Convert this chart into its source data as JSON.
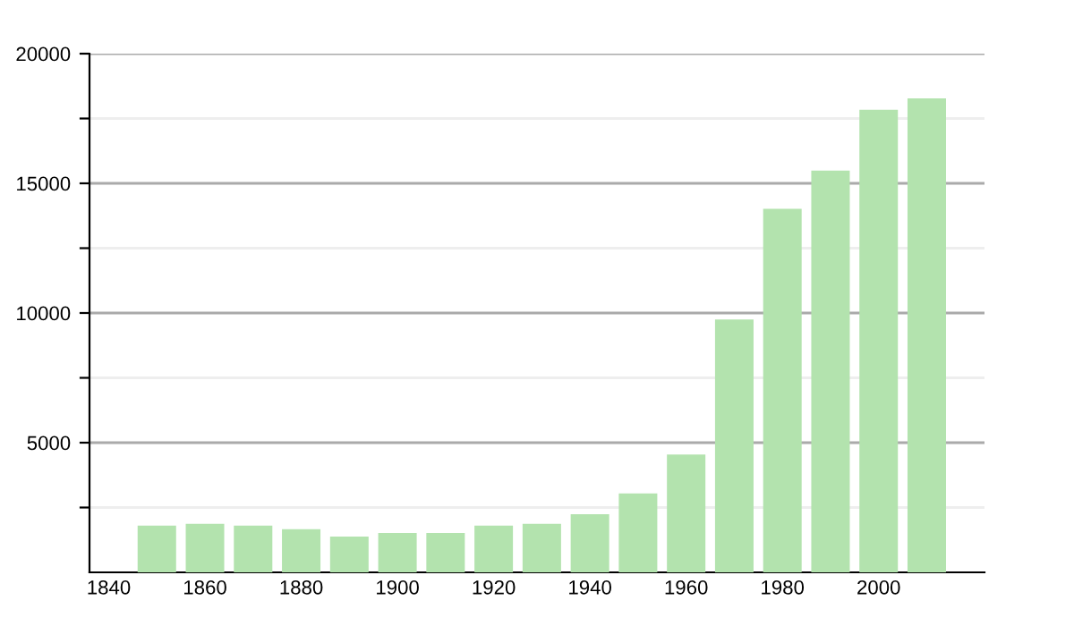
{
  "chart_data": {
    "type": "bar",
    "x": [
      1850,
      1860,
      1870,
      1880,
      1890,
      1900,
      1910,
      1920,
      1930,
      1940,
      1950,
      1960,
      1970,
      1980,
      1990,
      2000,
      2010
    ],
    "values": [
      1800,
      1870,
      1800,
      1660,
      1380,
      1520,
      1520,
      1800,
      1870,
      2240,
      3040,
      4540,
      9750,
      14020,
      15490,
      17840,
      18280
    ],
    "color": "#b3e3ae",
    "xlim": [
      1836,
      2022
    ],
    "xticks": [
      1840,
      1860,
      1880,
      1900,
      1920,
      1940,
      1960,
      1980,
      2000
    ],
    "ylim": [
      0,
      20000
    ],
    "yticks": [
      {
        "value": 2500,
        "label": null
      },
      5000,
      {
        "value": 7500,
        "label": null
      },
      10000,
      {
        "value": 12500,
        "label": null
      },
      15000,
      {
        "value": 17500,
        "label": null
      },
      20000
    ],
    "grid": "y"
  }
}
